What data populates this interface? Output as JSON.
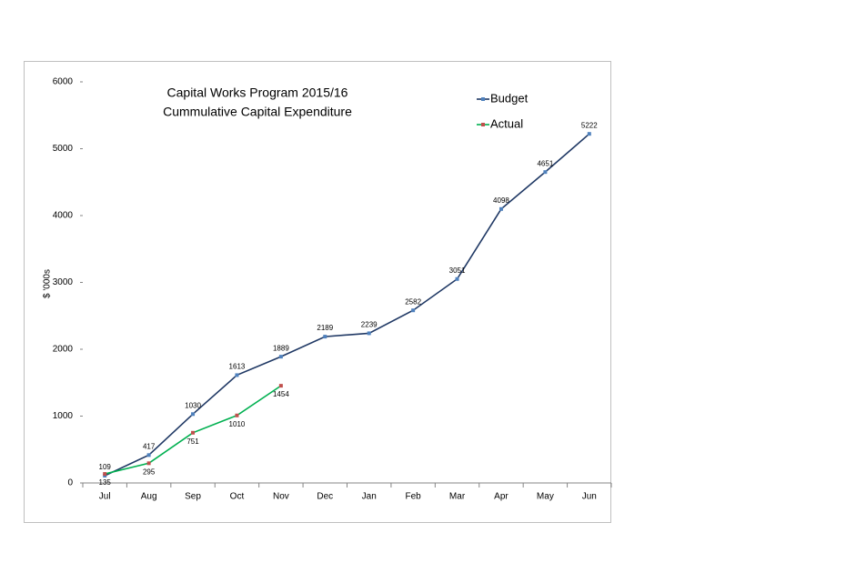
{
  "chart_data": {
    "type": "line",
    "title": [
      "Capital Works Program 2015/16",
      "Cummulative Capital Expenditure"
    ],
    "y_label": "$ '000s",
    "categories": [
      "Jul",
      "Aug",
      "Sep",
      "Oct",
      "Nov",
      "Dec",
      "Jan",
      "Feb",
      "Mar",
      "Apr",
      "May",
      "Jun"
    ],
    "series": [
      {
        "name": "Budget",
        "color": "#1f3864",
        "marker_color": "#4f81bd",
        "values": [
          109,
          417,
          1030,
          1613,
          1889,
          2189,
          2239,
          2582,
          3051,
          4098,
          4651,
          5222
        ]
      },
      {
        "name": "Actual",
        "color": "#00b050",
        "marker_color": "#c0504d",
        "values": [
          135,
          295,
          751,
          1010,
          1454,
          null,
          null,
          null,
          null,
          null,
          null,
          null
        ]
      }
    ],
    "ylim": [
      0,
      6000
    ],
    "yticks": [
      0,
      1000,
      2000,
      3000,
      4000,
      5000,
      6000
    ],
    "legend": "top-right"
  }
}
